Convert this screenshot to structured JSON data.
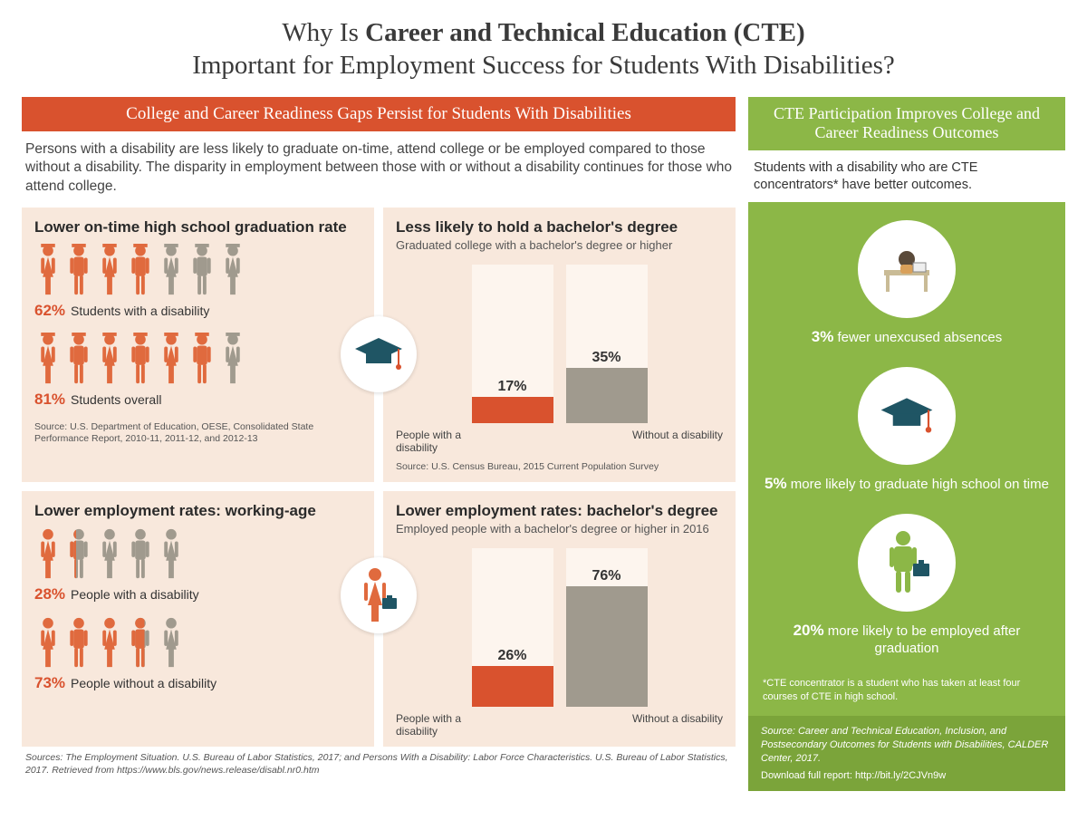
{
  "colors": {
    "orange": "#d9522e",
    "orange_alt": "#e06a3e",
    "gray": "#a09a8e",
    "green": "#8cb747",
    "green_dark": "#7ba43a",
    "teal": "#1f5564",
    "panel_bg": "#f8e8dc",
    "bar_bg": "#fdf5ee"
  },
  "title_pre": "Why Is ",
  "title_bold": "Career and Technical Education (CTE)",
  "title_post": " Important for Employment Success for Students With Disabilities?",
  "left": {
    "banner": "College and Career Readiness Gaps Persist for Students With Disabilities",
    "intro": "Persons with a disability are less likely to graduate on-time, attend college or be employed compared to those without a disability. The disparity in employment between those with or without a disability continues for those who attend college.",
    "panels": {
      "p1": {
        "title": "Lower on-time high school graduation rate",
        "row1": {
          "pct": "62%",
          "label": "Students with a disability",
          "filled": 4,
          "total": 7,
          "grad": true
        },
        "row2": {
          "pct": "81%",
          "label": "Students overall",
          "filled": 6,
          "total": 7,
          "grad": true
        },
        "source": "Source: U.S. Department of Education, OESE, Consolidated State Performance Report, 2010-11, 2011-12, and 2012-13"
      },
      "p2": {
        "title": "Less likely to hold a bachelor's degree",
        "sub": "Graduated college with a bachelor's degree or higher",
        "left_label": "People with a disability",
        "right_label": "Without a disability",
        "left_val": "17%",
        "left_pct": 17,
        "right_val": "35%",
        "right_pct": 35,
        "max_pct": 100,
        "source": "Source: U.S. Census Bureau, 2015 Current Population Survey"
      },
      "p3": {
        "title": "Lower employment rates: working-age",
        "row1": {
          "pct": "28%",
          "label": "People with a disability",
          "filled": 1.4,
          "total": 5
        },
        "row2": {
          "pct": "73%",
          "label": "People without a disability",
          "filled": 3.65,
          "total": 5
        }
      },
      "p4": {
        "title": "Lower employment rates: bachelor's degree",
        "sub": "Employed people with a bachelor's degree or higher in 2016",
        "left_label": "People with a disability",
        "right_label": "Without a disability",
        "left_val": "26%",
        "left_pct": 26,
        "right_val": "76%",
        "right_pct": 76,
        "max_pct": 100
      }
    },
    "bottom_source": "Sources: The Employment Situation. U.S. Bureau of Labor Statistics, 2017; and Persons With a Disability: Labor Force Characteristics. U.S. Bureau of Labor Statistics, 2017. Retrieved from https://www.bls.gov/news.release/disabl.nr0.htm"
  },
  "right": {
    "banner": "CTE Participation Improves College and Career Readiness Outcomes",
    "intro": "Students with a disability who are CTE concentrators* have better outcomes.",
    "outcomes": [
      {
        "pct": "3%",
        "text": " fewer unexcused absences",
        "icon": "desk"
      },
      {
        "pct": "5%",
        "text": " more likely to graduate high school on time",
        "icon": "cap"
      },
      {
        "pct": "20%",
        "text": " more likely to be employed after graduation",
        "icon": "worker"
      }
    ],
    "footnote": "*CTE concentrator is a student who has taken at least four courses of CTE in high school.",
    "source": "Source: Career and Technical Education, Inclusion, and Postsecondary Outcomes for Students with Disabilities, CALDER Center, 2017.",
    "download": "Download full report: http://bit.ly/2CJVn9w"
  }
}
